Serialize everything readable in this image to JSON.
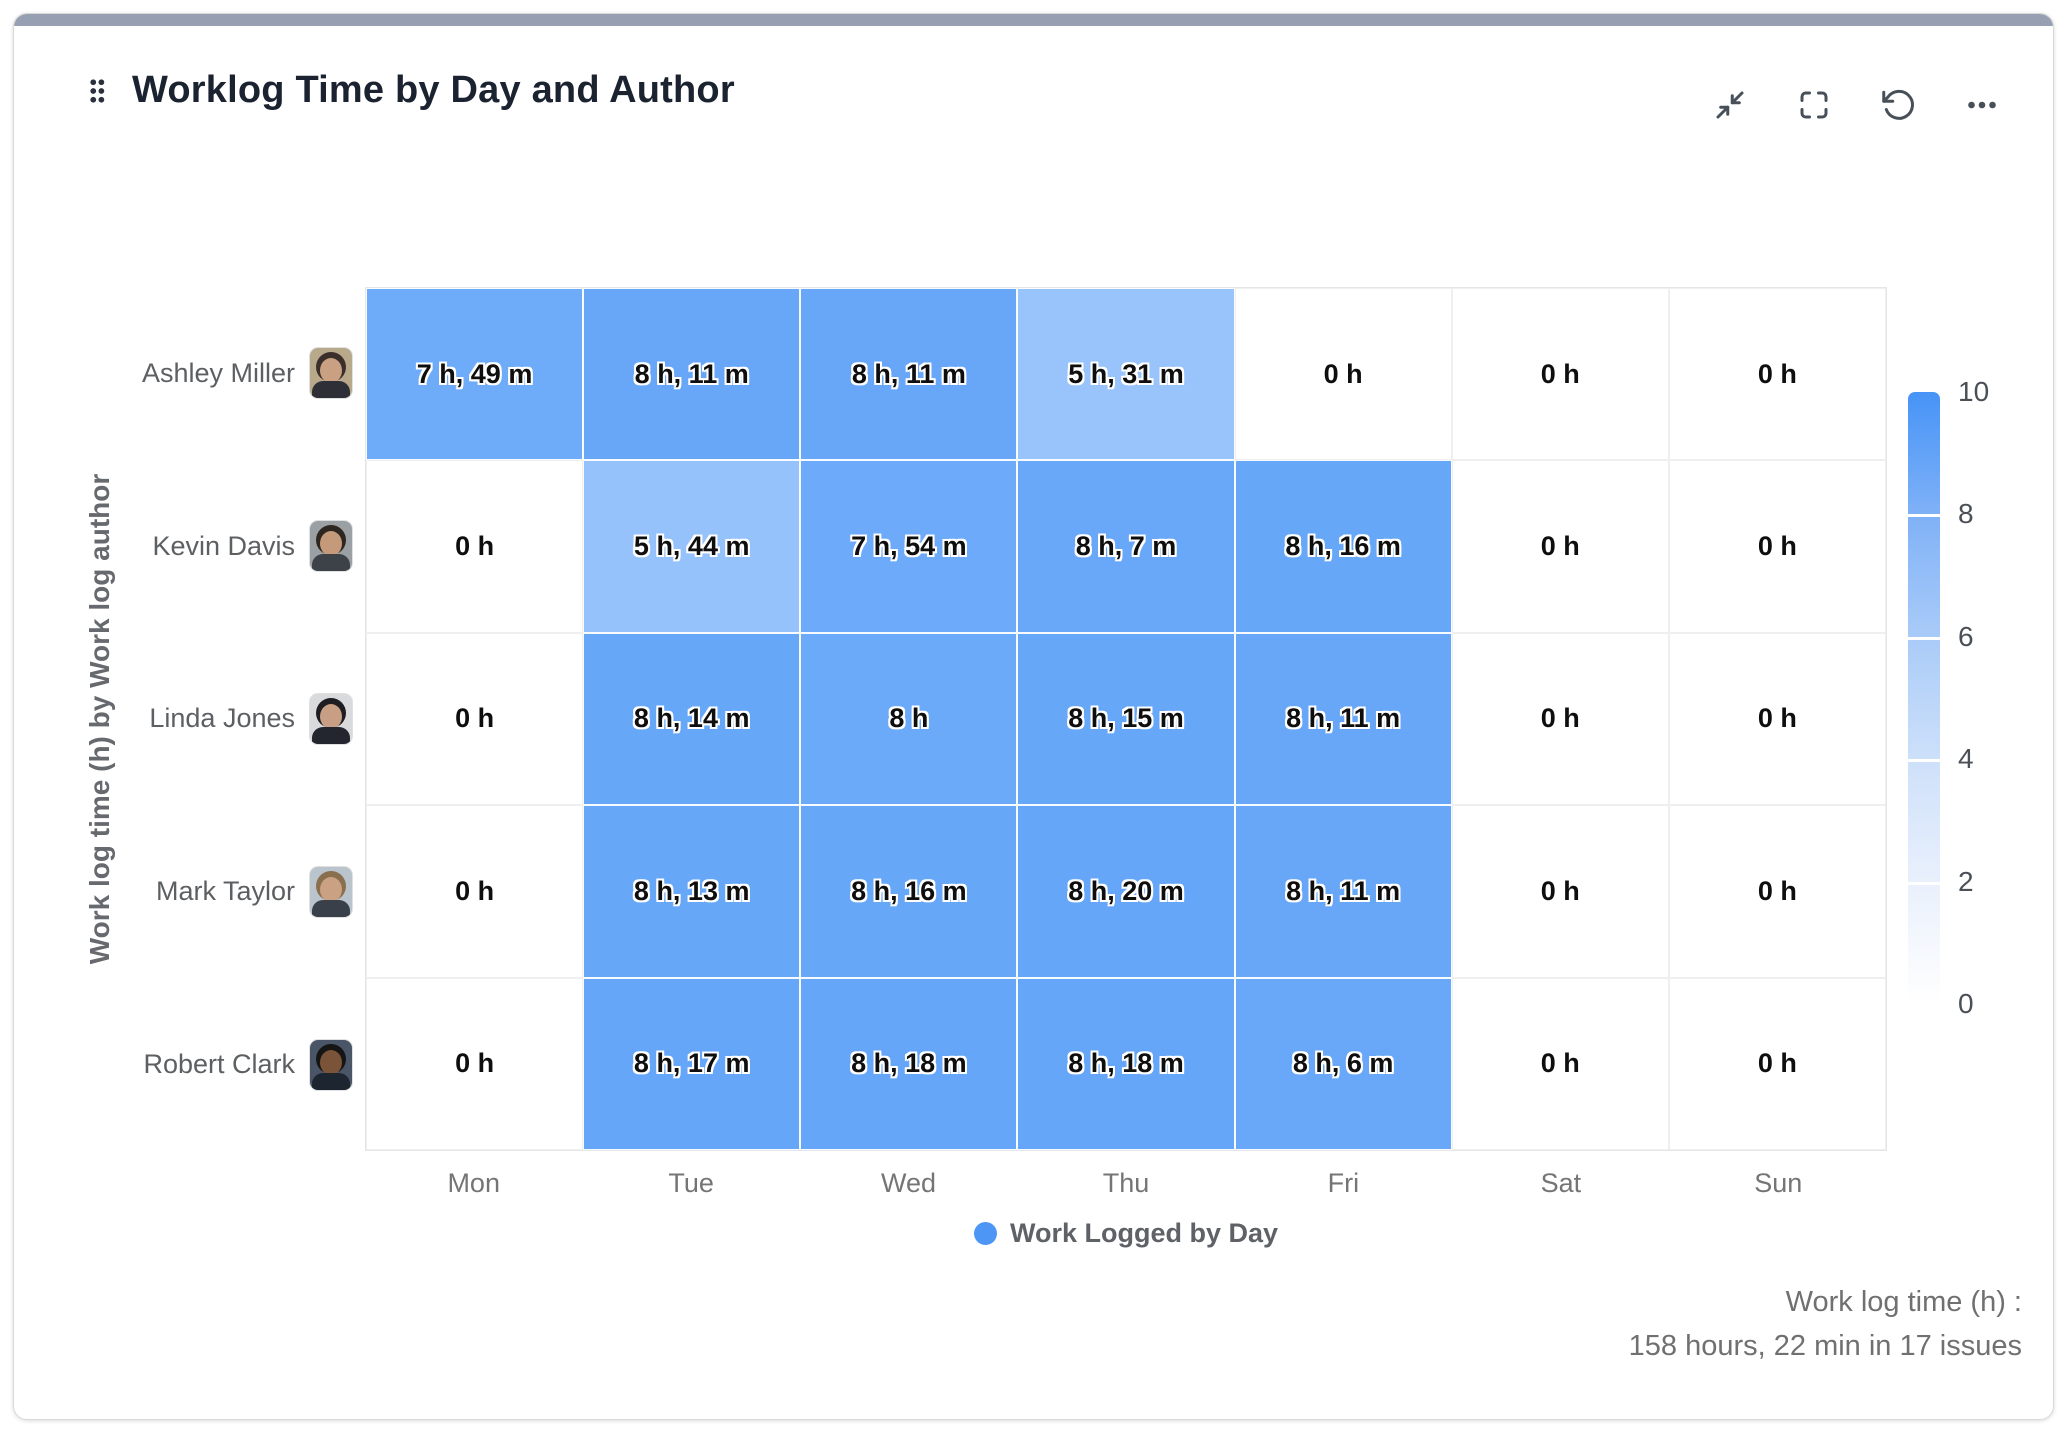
{
  "card": {
    "title": "Worklog Time by Day and Author",
    "accent_bar_color": "#96a0b2"
  },
  "toolbar": {
    "icons": [
      "collapse",
      "fullscreen",
      "refresh",
      "more-options"
    ]
  },
  "chart_data": {
    "type": "heatmap",
    "title": "Worklog Time by Day and Author",
    "x_categories": [
      "Mon",
      "Tue",
      "Wed",
      "Thu",
      "Fri",
      "Sat",
      "Sun"
    ],
    "y_axis_label": "Work log time (h) by Work log author",
    "legend": {
      "label": "Work Logged by Day",
      "dot_color": "#4d96f6"
    },
    "colorscale": {
      "min": 0,
      "max": 10,
      "ticks": [
        10,
        8,
        6,
        4,
        2,
        0
      ],
      "high_color": "#4694f7",
      "low_color": "#ffffff"
    },
    "rows": [
      {
        "author": "Ashley Miller",
        "avatar": {
          "bg": "#b8a98a",
          "hair": "#3a2f2a",
          "skin": "#caa083",
          "shirt": "#2f2f38"
        },
        "cells": [
          {
            "label": "7 h, 49 m",
            "hours": 7.82
          },
          {
            "label": "8 h, 11 m",
            "hours": 8.18
          },
          {
            "label": "8 h, 11 m",
            "hours": 8.18
          },
          {
            "label": "5 h, 31 m",
            "hours": 5.52
          },
          {
            "label": "0 h",
            "hours": 0
          },
          {
            "label": "0 h",
            "hours": 0
          },
          {
            "label": "0 h",
            "hours": 0
          }
        ]
      },
      {
        "author": "Kevin Davis",
        "avatar": {
          "bg": "#9aa0a4",
          "hair": "#2e2620",
          "skin": "#c49a7a",
          "shirt": "#3d4248"
        },
        "cells": [
          {
            "label": "0 h",
            "hours": 0
          },
          {
            "label": "5 h, 44 m",
            "hours": 5.73
          },
          {
            "label": "7 h, 54 m",
            "hours": 7.9
          },
          {
            "label": "8 h, 7 m",
            "hours": 8.12
          },
          {
            "label": "8 h, 16 m",
            "hours": 8.27
          },
          {
            "label": "0 h",
            "hours": 0
          },
          {
            "label": "0 h",
            "hours": 0
          }
        ]
      },
      {
        "author": "Linda Jones",
        "avatar": {
          "bg": "#d8dadc",
          "hair": "#1f1d22",
          "skin": "#c89f84",
          "shirt": "#23262e"
        },
        "cells": [
          {
            "label": "0 h",
            "hours": 0
          },
          {
            "label": "8 h, 14 m",
            "hours": 8.23
          },
          {
            "label": "8 h",
            "hours": 8.0
          },
          {
            "label": "8 h, 15 m",
            "hours": 8.25
          },
          {
            "label": "8 h, 11 m",
            "hours": 8.18
          },
          {
            "label": "0 h",
            "hours": 0
          },
          {
            "label": "0 h",
            "hours": 0
          }
        ]
      },
      {
        "author": "Mark Taylor",
        "avatar": {
          "bg": "#b9c4cc",
          "hair": "#8a6f4e",
          "skin": "#caa183",
          "shirt": "#39404a"
        },
        "cells": [
          {
            "label": "0 h",
            "hours": 0
          },
          {
            "label": "8 h, 13 m",
            "hours": 8.22
          },
          {
            "label": "8 h, 16 m",
            "hours": 8.27
          },
          {
            "label": "8 h, 20 m",
            "hours": 8.33
          },
          {
            "label": "8 h, 11 m",
            "hours": 8.18
          },
          {
            "label": "0 h",
            "hours": 0
          },
          {
            "label": "0 h",
            "hours": 0
          }
        ]
      },
      {
        "author": "Robert Clark",
        "avatar": {
          "bg": "#4a5668",
          "hair": "#151515",
          "skin": "#7a5338",
          "shirt": "#1d2630"
        },
        "cells": [
          {
            "label": "0 h",
            "hours": 0
          },
          {
            "label": "8 h, 17 m",
            "hours": 8.28
          },
          {
            "label": "8 h, 18 m",
            "hours": 8.3
          },
          {
            "label": "8 h, 18 m",
            "hours": 8.3
          },
          {
            "label": "8 h, 6 m",
            "hours": 8.1
          },
          {
            "label": "0 h",
            "hours": 0
          },
          {
            "label": "0 h",
            "hours": 0
          }
        ]
      }
    ],
    "summary_line1": "Work log time (h) :",
    "summary_line2": "158 hours, 22 min in 17 issues"
  }
}
